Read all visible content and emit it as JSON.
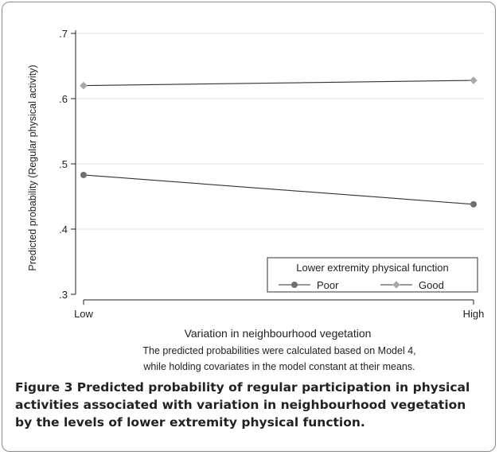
{
  "chart_data": {
    "type": "line",
    "categories": [
      "Low",
      "High"
    ],
    "series": [
      {
        "name": "Poor",
        "values": [
          0.483,
          0.438
        ],
        "color": "#6e6e6e",
        "marker": "circle"
      },
      {
        "name": "Good",
        "values": [
          0.62,
          0.628
        ],
        "color": "#a8a8a8",
        "marker": "diamond"
      }
    ],
    "ylim": [
      0.3,
      0.7
    ],
    "yticks": [
      0.3,
      0.4,
      0.5,
      0.6,
      0.7
    ],
    "ytick_labels": [
      ".3",
      ".4",
      ".5",
      ".6",
      ".7"
    ],
    "ylabel": "Predicted probability (Regular physical activity)",
    "xlabel": "Variation in neighbourhood vegetation",
    "note_line1": "The predicted probabilities were calculated based on Model 4,",
    "note_line2": "while holding covariates in the model constant at their means.",
    "legend_title": "Lower extremity physical function",
    "legend_position": "bottom-right",
    "grid": true
  },
  "caption": {
    "label": "Figure 3",
    "text": " Predicted probability of regular participation in physical activities associated with variation in neighbourhood vegetation by the levels of lower extremity physical function."
  }
}
